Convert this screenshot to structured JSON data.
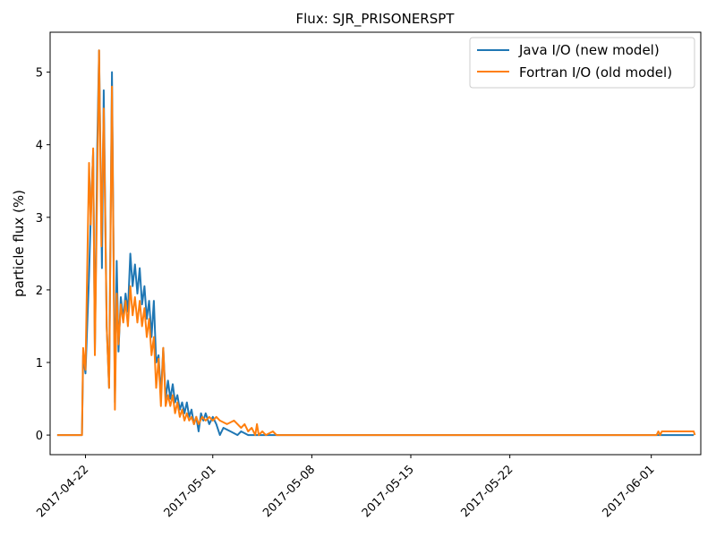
{
  "chart_data": {
    "type": "line",
    "title": "Flux: SJR_PRISONERSPT",
    "xlabel": "",
    "ylabel": "particle flux (%)",
    "xlim": [
      "2017-04-19T12:00",
      "2017-06-04T12:00"
    ],
    "ylim": [
      -0.27,
      5.55
    ],
    "x_ticks": [
      "2017-04-22",
      "2017-05-01",
      "2017-05-08",
      "2017-05-15",
      "2017-05-22",
      "2017-06-01"
    ],
    "y_ticks": [
      0,
      1,
      2,
      3,
      4,
      5
    ],
    "grid": false,
    "legend_position": "top-right",
    "series": [
      {
        "name": "Java I/O (new model)",
        "color": "#1f77b4",
        "points": [
          [
            "2017-04-20T00:00",
            0.0
          ],
          [
            "2017-04-21T18:00",
            0.0
          ],
          [
            "2017-04-21T20:00",
            1.1
          ],
          [
            "2017-04-22T00:00",
            0.85
          ],
          [
            "2017-04-22T06:00",
            2.2
          ],
          [
            "2017-04-22T10:00",
            3.3
          ],
          [
            "2017-04-22T13:00",
            3.9
          ],
          [
            "2017-04-22T16:00",
            1.15
          ],
          [
            "2017-04-22T20:00",
            4.0
          ],
          [
            "2017-04-22T23:00",
            5.3
          ],
          [
            "2017-04-23T04:00",
            2.3
          ],
          [
            "2017-04-23T07:00",
            4.75
          ],
          [
            "2017-04-23T12:00",
            1.5
          ],
          [
            "2017-04-23T16:00",
            0.65
          ],
          [
            "2017-04-23T21:00",
            5.0
          ],
          [
            "2017-04-24T02:00",
            0.45
          ],
          [
            "2017-04-24T05:00",
            2.4
          ],
          [
            "2017-04-24T08:00",
            1.15
          ],
          [
            "2017-04-24T12:00",
            1.9
          ],
          [
            "2017-04-24T16:00",
            1.6
          ],
          [
            "2017-04-24T20:00",
            1.95
          ],
          [
            "2017-04-25T00:00",
            1.7
          ],
          [
            "2017-04-25T04:00",
            2.5
          ],
          [
            "2017-04-25T08:00",
            2.05
          ],
          [
            "2017-04-25T12:00",
            2.35
          ],
          [
            "2017-04-25T16:00",
            1.95
          ],
          [
            "2017-04-25T20:00",
            2.3
          ],
          [
            "2017-04-26T00:00",
            1.8
          ],
          [
            "2017-04-26T04:00",
            2.05
          ],
          [
            "2017-04-26T08:00",
            1.6
          ],
          [
            "2017-04-26T12:00",
            1.85
          ],
          [
            "2017-04-26T16:00",
            1.35
          ],
          [
            "2017-04-26T20:00",
            1.85
          ],
          [
            "2017-04-27T00:00",
            1.0
          ],
          [
            "2017-04-27T04:00",
            1.1
          ],
          [
            "2017-04-27T08:00",
            0.55
          ],
          [
            "2017-04-27T12:00",
            1.2
          ],
          [
            "2017-04-27T16:00",
            0.5
          ],
          [
            "2017-04-27T20:00",
            0.75
          ],
          [
            "2017-04-28T00:00",
            0.5
          ],
          [
            "2017-04-28T04:00",
            0.7
          ],
          [
            "2017-04-28T08:00",
            0.45
          ],
          [
            "2017-04-28T12:00",
            0.55
          ],
          [
            "2017-04-28T16:00",
            0.35
          ],
          [
            "2017-04-28T20:00",
            0.45
          ],
          [
            "2017-04-29T00:00",
            0.3
          ],
          [
            "2017-04-29T04:00",
            0.45
          ],
          [
            "2017-04-29T08:00",
            0.25
          ],
          [
            "2017-04-29T12:00",
            0.35
          ],
          [
            "2017-04-29T16:00",
            0.15
          ],
          [
            "2017-04-29T20:00",
            0.25
          ],
          [
            "2017-04-30T00:00",
            0.05
          ],
          [
            "2017-04-30T04:00",
            0.3
          ],
          [
            "2017-04-30T08:00",
            0.2
          ],
          [
            "2017-04-30T12:00",
            0.3
          ],
          [
            "2017-04-30T18:00",
            0.15
          ],
          [
            "2017-05-01T00:00",
            0.25
          ],
          [
            "2017-05-01T06:00",
            0.15
          ],
          [
            "2017-05-01T12:00",
            0.0
          ],
          [
            "2017-05-01T18:00",
            0.1
          ],
          [
            "2017-05-02T06:00",
            0.05
          ],
          [
            "2017-05-02T18:00",
            0.0
          ],
          [
            "2017-05-03T00:00",
            0.05
          ],
          [
            "2017-05-03T12:00",
            0.0
          ],
          [
            "2017-06-04T00:00",
            0.0
          ]
        ]
      },
      {
        "name": "Fortran I/O (old model)",
        "color": "#ff7f0e",
        "points": [
          [
            "2017-04-20T00:00",
            0.0
          ],
          [
            "2017-04-21T18:00",
            0.0
          ],
          [
            "2017-04-21T20:00",
            1.2
          ],
          [
            "2017-04-22T00:00",
            0.9
          ],
          [
            "2017-04-22T06:00",
            3.75
          ],
          [
            "2017-04-22T09:00",
            2.9
          ],
          [
            "2017-04-22T13:00",
            3.95
          ],
          [
            "2017-04-22T16:00",
            1.1
          ],
          [
            "2017-04-22T20:00",
            3.5
          ],
          [
            "2017-04-22T23:00",
            5.3
          ],
          [
            "2017-04-23T03:00",
            2.6
          ],
          [
            "2017-04-23T07:00",
            4.5
          ],
          [
            "2017-04-23T12:00",
            1.5
          ],
          [
            "2017-04-23T16:00",
            0.65
          ],
          [
            "2017-04-23T21:00",
            4.8
          ],
          [
            "2017-04-24T02:00",
            0.35
          ],
          [
            "2017-04-24T05:00",
            1.95
          ],
          [
            "2017-04-24T08:00",
            1.25
          ],
          [
            "2017-04-24T12:00",
            1.8
          ],
          [
            "2017-04-24T16:00",
            1.55
          ],
          [
            "2017-04-24T20:00",
            1.85
          ],
          [
            "2017-04-25T00:00",
            1.5
          ],
          [
            "2017-04-25T04:00",
            2.05
          ],
          [
            "2017-04-25T08:00",
            1.65
          ],
          [
            "2017-04-25T12:00",
            1.9
          ],
          [
            "2017-04-25T16:00",
            1.55
          ],
          [
            "2017-04-25T20:00",
            1.85
          ],
          [
            "2017-04-26T00:00",
            1.5
          ],
          [
            "2017-04-26T04:00",
            1.75
          ],
          [
            "2017-04-26T08:00",
            1.35
          ],
          [
            "2017-04-26T12:00",
            1.6
          ],
          [
            "2017-04-26T16:00",
            1.1
          ],
          [
            "2017-04-26T20:00",
            1.35
          ],
          [
            "2017-04-27T00:00",
            0.65
          ],
          [
            "2017-04-27T04:00",
            1.05
          ],
          [
            "2017-04-27T08:00",
            0.4
          ],
          [
            "2017-04-27T12:00",
            1.2
          ],
          [
            "2017-04-27T16:00",
            0.4
          ],
          [
            "2017-04-27T20:00",
            0.55
          ],
          [
            "2017-04-28T00:00",
            0.4
          ],
          [
            "2017-04-28T04:00",
            0.55
          ],
          [
            "2017-04-28T08:00",
            0.3
          ],
          [
            "2017-04-28T12:00",
            0.45
          ],
          [
            "2017-04-28T16:00",
            0.25
          ],
          [
            "2017-04-28T20:00",
            0.35
          ],
          [
            "2017-04-29T00:00",
            0.2
          ],
          [
            "2017-04-29T04:00",
            0.3
          ],
          [
            "2017-04-29T08:00",
            0.2
          ],
          [
            "2017-04-29T12:00",
            0.25
          ],
          [
            "2017-04-29T16:00",
            0.15
          ],
          [
            "2017-04-29T20:00",
            0.25
          ],
          [
            "2017-04-30T00:00",
            0.15
          ],
          [
            "2017-04-30T06:00",
            0.25
          ],
          [
            "2017-04-30T12:00",
            0.2
          ],
          [
            "2017-04-30T18:00",
            0.25
          ],
          [
            "2017-05-01T00:00",
            0.2
          ],
          [
            "2017-05-01T06:00",
            0.25
          ],
          [
            "2017-05-01T12:00",
            0.2
          ],
          [
            "2017-05-02T00:00",
            0.15
          ],
          [
            "2017-05-02T12:00",
            0.2
          ],
          [
            "2017-05-03T00:00",
            0.1
          ],
          [
            "2017-05-03T06:00",
            0.15
          ],
          [
            "2017-05-03T12:00",
            0.05
          ],
          [
            "2017-05-03T18:00",
            0.1
          ],
          [
            "2017-05-04T00:00",
            0.0
          ],
          [
            "2017-05-04T03:00",
            0.15
          ],
          [
            "2017-05-04T06:00",
            0.0
          ],
          [
            "2017-05-04T12:00",
            0.05
          ],
          [
            "2017-05-04T18:00",
            0.0
          ],
          [
            "2017-05-05T06:00",
            0.05
          ],
          [
            "2017-05-05T12:00",
            0.0
          ],
          [
            "2017-06-01T09:00",
            0.0
          ],
          [
            "2017-06-01T12:00",
            0.05
          ],
          [
            "2017-06-01T15:00",
            0.0
          ],
          [
            "2017-06-01T18:00",
            0.05
          ],
          [
            "2017-06-04T00:00",
            0.05
          ],
          [
            "2017-06-04T02:00",
            0.0
          ]
        ]
      }
    ]
  }
}
